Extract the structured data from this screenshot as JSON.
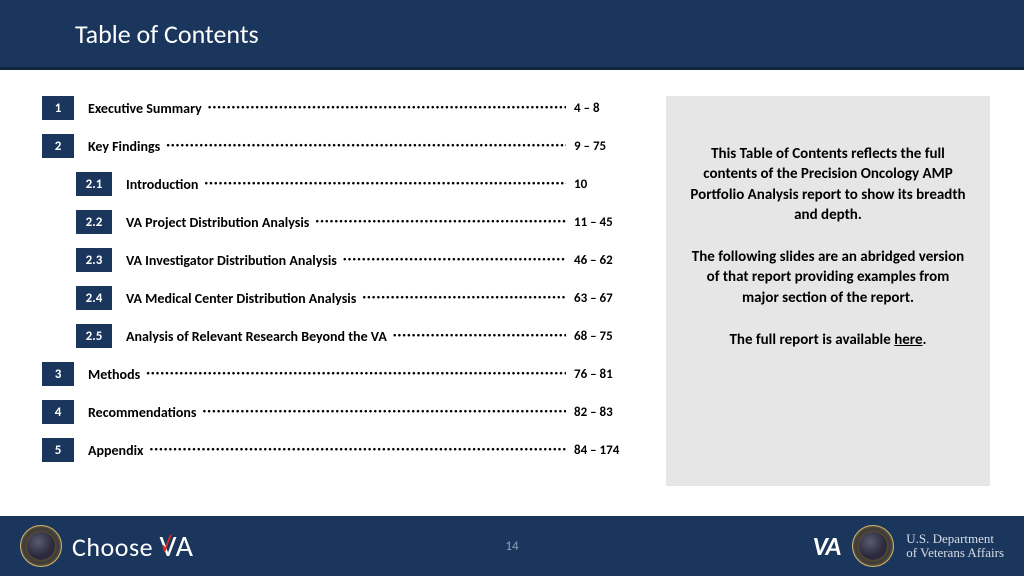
{
  "header": {
    "title": "Table of Contents"
  },
  "colors": {
    "header_bg": "#1a365d",
    "box_bg": "#1a365d",
    "sidebar_bg": "#e6e6e6",
    "footer_bg": "#1a365d",
    "check_red": "#d42a2a"
  },
  "toc": [
    {
      "num": "1",
      "label": "Executive Summary",
      "pages": "4 – 8",
      "sub": false
    },
    {
      "num": "2",
      "label": "Key Findings",
      "pages": "9 – 75",
      "sub": false
    },
    {
      "num": "2.1",
      "label": "Introduction",
      "pages": "10",
      "sub": true
    },
    {
      "num": "2.2",
      "label": "VA Project Distribution Analysis",
      "pages": "11 – 45",
      "sub": true
    },
    {
      "num": "2.3",
      "label": "VA Investigator Distribution Analysis",
      "pages": "46 – 62",
      "sub": true
    },
    {
      "num": "2.4",
      "label": "VA Medical Center Distribution Analysis",
      "pages": "63 – 67",
      "sub": true
    },
    {
      "num": "2.5",
      "label": "Analysis of Relevant Research Beyond the VA",
      "pages": "68 – 75",
      "sub": true
    },
    {
      "num": "3",
      "label": "Methods",
      "pages": "76 – 81",
      "sub": false
    },
    {
      "num": "4",
      "label": "Recommendations",
      "pages": "82 – 83",
      "sub": false
    },
    {
      "num": "5",
      "label": "Appendix",
      "pages": "84 – 174",
      "sub": false
    }
  ],
  "sidebar": {
    "p1": "This Table of Contents reflects the full contents of the Precision Oncology AMP Portfolio Analysis report to show its breadth and depth.",
    "p2": "The following slides are an abridged version of that report providing examples from major section of the report.",
    "p3_prefix": "The full report is available ",
    "p3_link": "here",
    "p3_suffix": "."
  },
  "footer": {
    "choose_text": "Choose ",
    "choose_v": "V",
    "choose_a": "A",
    "page_number": "14",
    "va_mark": "VA",
    "dept_line1": "U.S. Department",
    "dept_line2": "of Veterans Affairs"
  }
}
